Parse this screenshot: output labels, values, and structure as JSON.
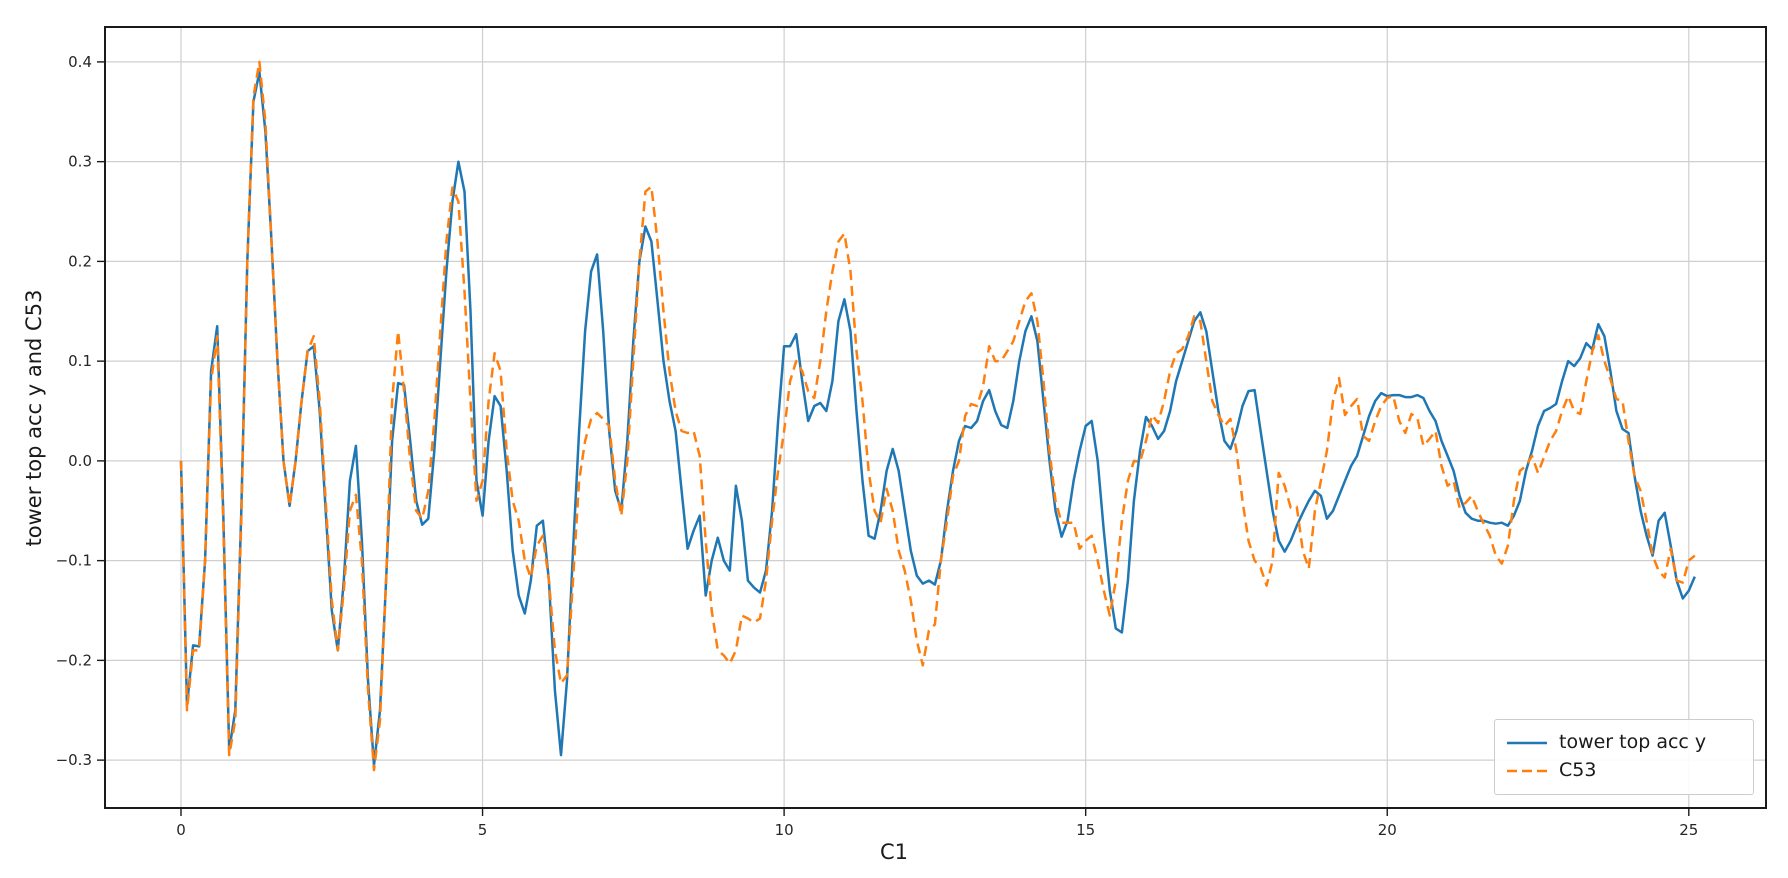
{
  "figure": {
    "background": "#ffffff",
    "grid_color": "#cfcfcf",
    "spine_color": "#1a1a1a",
    "x_ticks": [
      "0",
      "5",
      "10",
      "15",
      "20",
      "25"
    ],
    "y_ticks": [
      "0.4",
      "0.3",
      "0.2",
      "0.1",
      "0.0",
      "−0.1",
      "−0.2",
      "−0.3"
    ]
  },
  "chart_data": {
    "type": "line",
    "title": "",
    "xlabel": "C1",
    "ylabel": "tower top acc y and C53",
    "xlim": [
      -1.26,
      26.28
    ],
    "ylim": [
      -0.348,
      0.435
    ],
    "x_tick_values": [
      0,
      5,
      10,
      15,
      20,
      25
    ],
    "y_tick_values": [
      0.4,
      0.3,
      0.2,
      0.1,
      0.0,
      -0.1,
      -0.2,
      -0.3
    ],
    "grid": true,
    "legend_position": "lower right",
    "x_start": 0.0,
    "x_step": 0.1,
    "series": [
      {
        "name": "tower top acc y",
        "color": "#1f77b4",
        "style": "solid",
        "values": [
          0,
          -0.245,
          -0.185,
          -0.186,
          -0.1,
          0.09,
          0.135,
          -0.05,
          -0.29,
          -0.25,
          -0.05,
          0.2,
          0.36,
          0.39,
          0.33,
          0.22,
          0.1,
          0,
          -0.045,
          0,
          0.06,
          0.11,
          0.115,
          0.05,
          -0.05,
          -0.15,
          -0.19,
          -0.12,
          -0.02,
          0.015,
          -0.08,
          -0.22,
          -0.305,
          -0.25,
          -0.12,
          0.02,
          0.078,
          0.076,
          0.02,
          -0.04,
          -0.064,
          -0.058,
          0.01,
          0.1,
          0.19,
          0.26,
          0.3,
          0.27,
          0.15,
          -0.02,
          -0.055,
          0.02,
          0.065,
          0.055,
          -0.01,
          -0.09,
          -0.135,
          -0.153,
          -0.12,
          -0.065,
          -0.06,
          -0.12,
          -0.23,
          -0.295,
          -0.22,
          -0.09,
          0.03,
          0.13,
          0.19,
          0.207,
          0.13,
          0.03,
          -0.03,
          -0.05,
          0.02,
          0.12,
          0.2,
          0.235,
          0.22,
          0.16,
          0.1,
          0.06,
          0.03,
          -0.03,
          -0.088,
          -0.07,
          -0.055,
          -0.135,
          -0.1,
          -0.077,
          -0.1,
          -0.11,
          -0.025,
          -0.06,
          -0.12,
          -0.127,
          -0.132,
          -0.11,
          -0.05,
          0.04,
          0.115,
          0.115,
          0.127,
          0.08,
          0.04,
          0.055,
          0.058,
          0.05,
          0.08,
          0.14,
          0.162,
          0.13,
          0.05,
          -0.02,
          -0.075,
          -0.078,
          -0.05,
          -0.01,
          0.012,
          -0.01,
          -0.05,
          -0.09,
          -0.115,
          -0.123,
          -0.12,
          -0.124,
          -0.1,
          -0.05,
          -0.01,
          0.02,
          0.035,
          0.033,
          0.04,
          0.06,
          0.071,
          0.05,
          0.036,
          0.033,
          0.06,
          0.1,
          0.13,
          0.145,
          0.12,
          0.06,
          0,
          -0.05,
          -0.076,
          -0.06,
          -0.02,
          0.01,
          0.035,
          0.04,
          0,
          -0.07,
          -0.13,
          -0.168,
          -0.172,
          -0.12,
          -0.04,
          0.01,
          0.044,
          0.035,
          0.022,
          0.03,
          0.05,
          0.08,
          0.1,
          0.12,
          0.14,
          0.149,
          0.13,
          0.09,
          0.05,
          0.02,
          0.012,
          0.03,
          0.055,
          0.07,
          0.071,
          0.03,
          -0.01,
          -0.05,
          -0.08,
          -0.091,
          -0.08,
          -0.065,
          -0.052,
          -0.04,
          -0.03,
          -0.035,
          -0.058,
          -0.05,
          -0.035,
          -0.02,
          -0.005,
          0.005,
          0.025,
          0.045,
          0.06,
          0.068,
          0.065,
          0.066,
          0.066,
          0.064,
          0.064,
          0.066,
          0.063,
          0.05,
          0.04,
          0.02,
          0.005,
          -0.01,
          -0.035,
          -0.052,
          -0.058,
          -0.06,
          -0.06,
          -0.062,
          -0.063,
          -0.062,
          -0.065,
          -0.055,
          -0.04,
          -0.01,
          0.01,
          0.035,
          0.05,
          0.053,
          0.057,
          0.08,
          0.1,
          0.095,
          0.103,
          0.118,
          0.112,
          0.137,
          0.125,
          0.09,
          0.05,
          0.032,
          0.028,
          -0.015,
          -0.05,
          -0.075,
          -0.095,
          -0.06,
          -0.052,
          -0.085,
          -0.12,
          -0.138,
          -0.13,
          -0.116
        ]
      },
      {
        "name": "C53",
        "color": "#ff7f0e",
        "style": "dashed",
        "values": [
          0,
          -0.25,
          -0.19,
          -0.19,
          -0.1,
          0.08,
          0.125,
          -0.06,
          -0.295,
          -0.26,
          -0.06,
          0.2,
          0.365,
          0.4,
          0.34,
          0.22,
          0.1,
          0,
          -0.045,
          0,
          0.06,
          0.11,
          0.125,
          0.06,
          -0.04,
          -0.14,
          -0.19,
          -0.13,
          -0.05,
          -0.034,
          -0.1,
          -0.23,
          -0.31,
          -0.26,
          -0.12,
          0.06,
          0.13,
          0.07,
          0,
          -0.05,
          -0.058,
          -0.03,
          0.04,
          0.13,
          0.22,
          0.274,
          0.26,
          0.17,
          0.06,
          -0.04,
          -0.02,
          0.06,
          0.108,
          0.09,
          0.01,
          -0.04,
          -0.06,
          -0.1,
          -0.117,
          -0.085,
          -0.075,
          -0.12,
          -0.19,
          -0.223,
          -0.215,
          -0.12,
          -0.02,
          0.02,
          0.042,
          0.048,
          0.042,
          0.035,
          -0.02,
          -0.055,
          0,
          0.1,
          0.2,
          0.27,
          0.275,
          0.22,
          0.15,
          0.09,
          0.05,
          0.03,
          0.028,
          0.03,
          0.005,
          -0.08,
          -0.15,
          -0.19,
          -0.195,
          -0.203,
          -0.19,
          -0.155,
          -0.158,
          -0.162,
          -0.158,
          -0.12,
          -0.06,
          -0.01,
          0.03,
          0.08,
          0.1,
          0.09,
          0.07,
          0.063,
          0.1,
          0.15,
          0.19,
          0.22,
          0.228,
          0.19,
          0.11,
          0.06,
          -0.01,
          -0.05,
          -0.062,
          -0.028,
          -0.05,
          -0.09,
          -0.11,
          -0.14,
          -0.18,
          -0.205,
          -0.17,
          -0.164,
          -0.1,
          -0.06,
          -0.015,
          0,
          0.045,
          0.057,
          0.055,
          0.075,
          0.115,
          0.1,
          0.1,
          0.11,
          0.12,
          0.14,
          0.16,
          0.168,
          0.14,
          0.08,
          0.01,
          -0.04,
          -0.062,
          -0.062,
          -0.062,
          -0.088,
          -0.08,
          -0.075,
          -0.1,
          -0.13,
          -0.155,
          -0.12,
          -0.06,
          -0.02,
          0,
          -0.001,
          0.02,
          0.046,
          0.038,
          0.06,
          0.09,
          0.108,
          0.112,
          0.125,
          0.145,
          0.14,
          0.1,
          0.06,
          0.046,
          0.035,
          0.042,
          0.01,
          -0.04,
          -0.08,
          -0.1,
          -0.107,
          -0.125,
          -0.1,
          -0.012,
          -0.025,
          -0.047,
          -0.046,
          -0.09,
          -0.108,
          -0.05,
          -0.02,
          0.01,
          0.06,
          0.083,
          0.046,
          0.055,
          0.062,
          0.025,
          0.02,
          0.04,
          0.055,
          0.063,
          0.065,
          0.04,
          0.028,
          0.047,
          0.043,
          0.015,
          0.022,
          0.03,
          -0.005,
          -0.025,
          -0.02,
          -0.047,
          -0.042,
          -0.035,
          -0.05,
          -0.063,
          -0.075,
          -0.095,
          -0.103,
          -0.085,
          -0.04,
          -0.01,
          -0.005,
          0.005,
          -0.012,
          0.004,
          0.02,
          0.03,
          0.05,
          0.065,
          0.05,
          0.047,
          0.08,
          0.11,
          0.126,
          0.1,
          0.082,
          0.062,
          0.06,
          0.02,
          -0.015,
          -0.03,
          -0.06,
          -0.095,
          -0.11,
          -0.117,
          -0.088,
          -0.12,
          -0.122,
          -0.1,
          -0.095
        ]
      }
    ]
  }
}
